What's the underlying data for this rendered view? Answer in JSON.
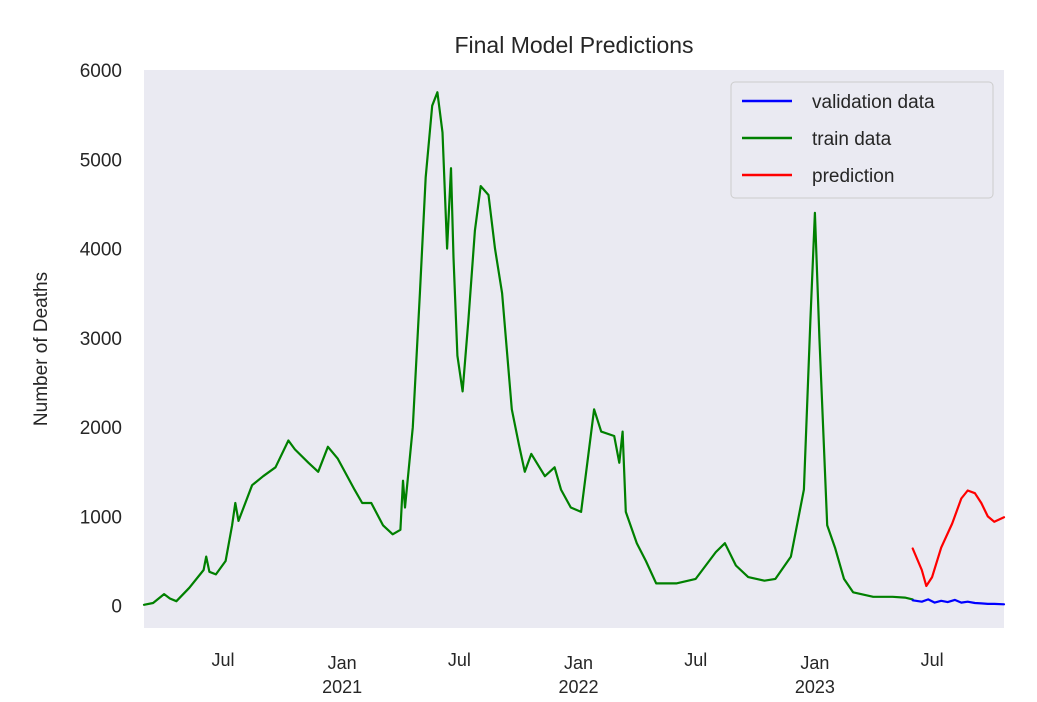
{
  "chart_data": {
    "type": "line",
    "title": "Final Model Predictions",
    "xlabel": "",
    "ylabel": "Number of Deaths",
    "x_axis": "date",
    "xlim": [
      "2020-03-01",
      "2023-10-20"
    ],
    "ylim": [
      -250,
      6000
    ],
    "y_ticks": [
      0,
      1000,
      2000,
      3000,
      4000,
      5000,
      6000
    ],
    "x_ticks": [
      {
        "date": "2020-07-01",
        "label": "Jul",
        "sublabel": ""
      },
      {
        "date": "2021-01-01",
        "label": "Jan",
        "sublabel": "2021"
      },
      {
        "date": "2021-07-01",
        "label": "Jul",
        "sublabel": ""
      },
      {
        "date": "2022-01-01",
        "label": "Jan",
        "sublabel": "2022"
      },
      {
        "date": "2022-07-01",
        "label": "Jul",
        "sublabel": ""
      },
      {
        "date": "2023-01-01",
        "label": "Jan",
        "sublabel": "2023"
      },
      {
        "date": "2023-07-01",
        "label": "Jul",
        "sublabel": ""
      }
    ],
    "grid": false,
    "background": "#eaeaf2",
    "legend_position": "top-right",
    "series": [
      {
        "name": "validation data",
        "color": "#0000ff",
        "points": [
          [
            "2023-06-01",
            60
          ],
          [
            "2023-06-15",
            45
          ],
          [
            "2023-06-25",
            70
          ],
          [
            "2023-07-05",
            35
          ],
          [
            "2023-07-15",
            55
          ],
          [
            "2023-07-25",
            40
          ],
          [
            "2023-08-05",
            65
          ],
          [
            "2023-08-15",
            35
          ],
          [
            "2023-08-25",
            45
          ],
          [
            "2023-09-05",
            30
          ],
          [
            "2023-09-15",
            25
          ],
          [
            "2023-09-25",
            20
          ],
          [
            "2023-10-05",
            20
          ],
          [
            "2023-10-20",
            15
          ]
        ]
      },
      {
        "name": "train data",
        "color": "#008000",
        "points": [
          [
            "2020-03-01",
            10
          ],
          [
            "2020-03-15",
            30
          ],
          [
            "2020-04-01",
            130
          ],
          [
            "2020-04-10",
            80
          ],
          [
            "2020-04-20",
            50
          ],
          [
            "2020-05-10",
            200
          ],
          [
            "2020-06-01",
            400
          ],
          [
            "2020-06-05",
            550
          ],
          [
            "2020-06-10",
            380
          ],
          [
            "2020-06-20",
            350
          ],
          [
            "2020-07-05",
            500
          ],
          [
            "2020-07-15",
            900
          ],
          [
            "2020-07-20",
            1150
          ],
          [
            "2020-07-25",
            950
          ],
          [
            "2020-08-15",
            1350
          ],
          [
            "2020-09-01",
            1450
          ],
          [
            "2020-09-20",
            1550
          ],
          [
            "2020-10-10",
            1850
          ],
          [
            "2020-10-20",
            1750
          ],
          [
            "2020-11-10",
            1600
          ],
          [
            "2020-11-25",
            1500
          ],
          [
            "2020-12-10",
            1780
          ],
          [
            "2020-12-25",
            1650
          ],
          [
            "2021-01-20",
            1300
          ],
          [
            "2021-02-01",
            1150
          ],
          [
            "2021-02-15",
            1150
          ],
          [
            "2021-03-05",
            900
          ],
          [
            "2021-03-20",
            800
          ],
          [
            "2021-04-01",
            850
          ],
          [
            "2021-04-05",
            1400
          ],
          [
            "2021-04-08",
            1100
          ],
          [
            "2021-04-20",
            2000
          ],
          [
            "2021-05-01",
            3500
          ],
          [
            "2021-05-10",
            4800
          ],
          [
            "2021-05-20",
            5600
          ],
          [
            "2021-05-28",
            5750
          ],
          [
            "2021-06-05",
            5300
          ],
          [
            "2021-06-12",
            4000
          ],
          [
            "2021-06-18",
            4900
          ],
          [
            "2021-06-22",
            3900
          ],
          [
            "2021-06-28",
            2800
          ],
          [
            "2021-07-06",
            2400
          ],
          [
            "2021-07-15",
            3200
          ],
          [
            "2021-07-25",
            4200
          ],
          [
            "2021-08-03",
            4700
          ],
          [
            "2021-08-15",
            4600
          ],
          [
            "2021-08-25",
            4000
          ],
          [
            "2021-09-05",
            3500
          ],
          [
            "2021-09-20",
            2200
          ],
          [
            "2021-10-01",
            1800
          ],
          [
            "2021-10-10",
            1500
          ],
          [
            "2021-10-20",
            1700
          ],
          [
            "2021-11-10",
            1450
          ],
          [
            "2021-11-25",
            1550
          ],
          [
            "2021-12-05",
            1300
          ],
          [
            "2021-12-20",
            1100
          ],
          [
            "2022-01-05",
            1050
          ],
          [
            "2022-01-25",
            2200
          ],
          [
            "2022-02-05",
            1950
          ],
          [
            "2022-02-25",
            1900
          ],
          [
            "2022-03-05",
            1600
          ],
          [
            "2022-03-10",
            1950
          ],
          [
            "2022-03-15",
            1050
          ],
          [
            "2022-04-01",
            700
          ],
          [
            "2022-04-15",
            500
          ],
          [
            "2022-05-01",
            250
          ],
          [
            "2022-06-01",
            250
          ],
          [
            "2022-07-01",
            300
          ],
          [
            "2022-08-01",
            600
          ],
          [
            "2022-08-15",
            700
          ],
          [
            "2022-09-01",
            450
          ],
          [
            "2022-09-20",
            320
          ],
          [
            "2022-10-15",
            280
          ],
          [
            "2022-11-01",
            300
          ],
          [
            "2022-11-25",
            550
          ],
          [
            "2022-12-15",
            1300
          ],
          [
            "2022-12-25",
            3200
          ],
          [
            "2023-01-01",
            4400
          ],
          [
            "2023-01-08",
            3000
          ],
          [
            "2023-01-20",
            900
          ],
          [
            "2023-02-01",
            650
          ],
          [
            "2023-02-15",
            300
          ],
          [
            "2023-03-01",
            150
          ],
          [
            "2023-04-01",
            100
          ],
          [
            "2023-05-01",
            100
          ],
          [
            "2023-05-20",
            90
          ],
          [
            "2023-06-01",
            70
          ]
        ]
      },
      {
        "name": "prediction",
        "color": "#ff0000",
        "points": [
          [
            "2023-06-01",
            640
          ],
          [
            "2023-06-15",
            400
          ],
          [
            "2023-06-22",
            220
          ],
          [
            "2023-07-01",
            320
          ],
          [
            "2023-07-15",
            650
          ],
          [
            "2023-08-01",
            920
          ],
          [
            "2023-08-15",
            1200
          ],
          [
            "2023-08-25",
            1290
          ],
          [
            "2023-09-05",
            1260
          ],
          [
            "2023-09-15",
            1150
          ],
          [
            "2023-09-25",
            1000
          ],
          [
            "2023-10-05",
            940
          ],
          [
            "2023-10-20",
            990
          ]
        ]
      }
    ]
  }
}
